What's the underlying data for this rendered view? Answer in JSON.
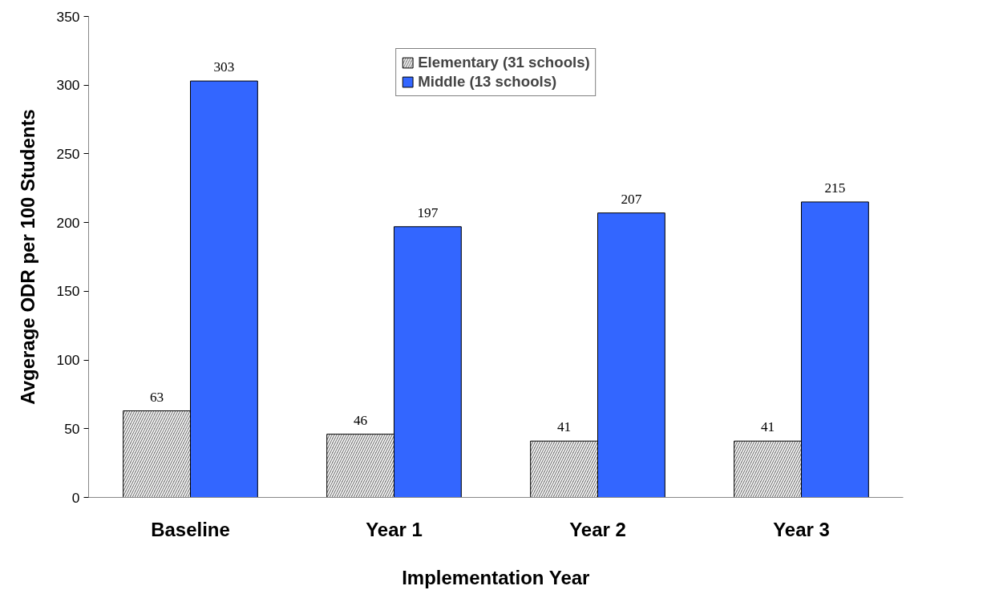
{
  "chart_data": {
    "type": "bar",
    "xlabel": "Implementation Year",
    "ylabel": "Avgerage ODR per 100 Students",
    "categories": [
      "Baseline",
      "Year 1",
      "Year 2",
      "Year 3"
    ],
    "series": [
      {
        "name": "Elementary (31 schools)",
        "color": "#808080",
        "values": [
          63,
          46,
          41,
          41
        ]
      },
      {
        "name": "Middle (13 schools)",
        "color": "#3366ff",
        "values": [
          303,
          197,
          207,
          215
        ]
      }
    ],
    "ylim": [
      0,
      350
    ],
    "yticks": [
      0,
      50,
      100,
      150,
      200,
      250,
      300,
      350
    ],
    "data_labels": true,
    "grid": false,
    "legend": "top"
  }
}
